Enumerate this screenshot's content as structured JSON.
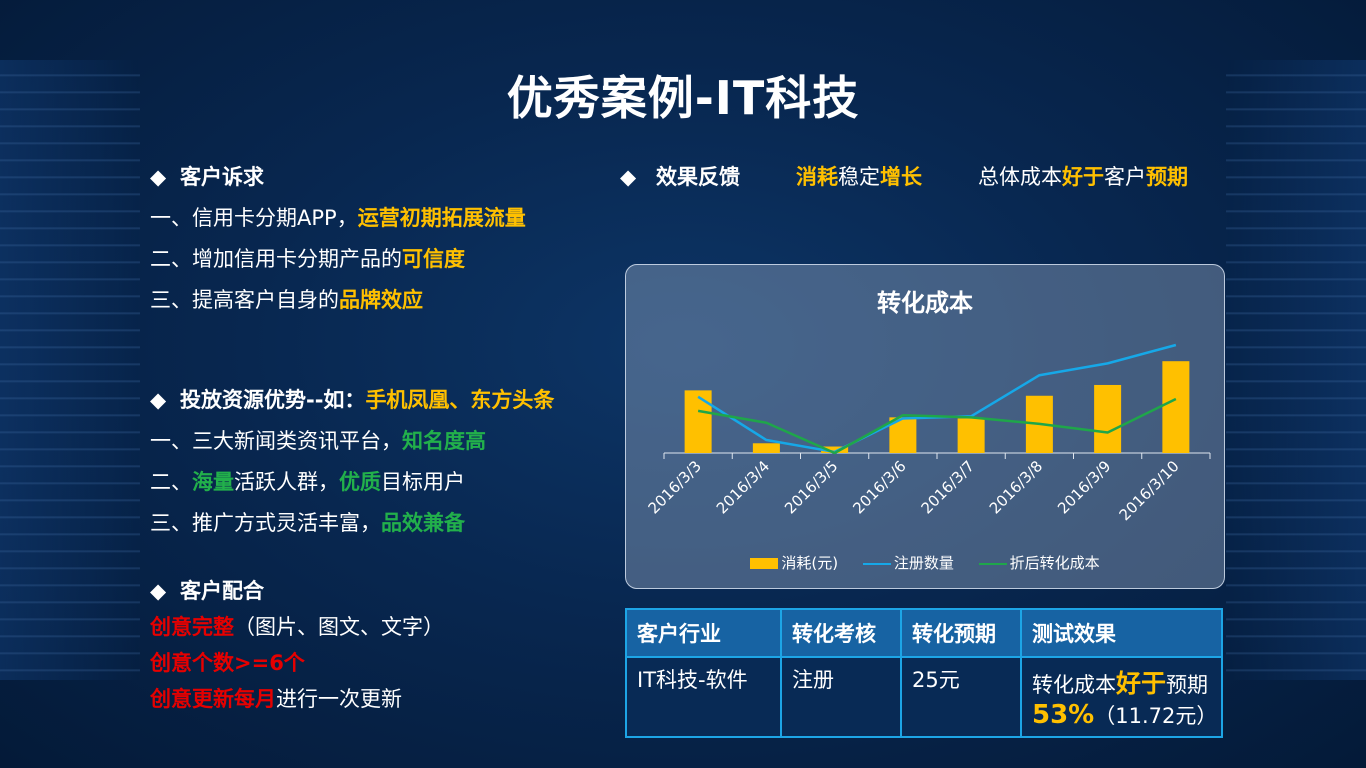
{
  "title": "优秀案例-IT科技",
  "requirements": {
    "heading": "客户诉求",
    "lines": [
      {
        "prefix": "一、信用卡分期APP，",
        "highlight": "运营初期拓展流量",
        "suffix": ""
      },
      {
        "prefix": "二、增加信用卡分期产品的",
        "highlight": "可信度",
        "suffix": ""
      },
      {
        "prefix": "三、提高客户自身的",
        "highlight": "品牌效应",
        "suffix": ""
      }
    ]
  },
  "resources": {
    "heading": "投放资源优势--如：",
    "heading_highlight": "手机凤凰、东方头条",
    "lines": [
      {
        "a": "一、三大新闻类资讯平台，",
        "b": "知名度高",
        "c": "",
        "d": "",
        "e": ""
      },
      {
        "a": "二、",
        "b": "海量",
        "c": "活跃人群，",
        "d": "优质",
        "e": "目标用户"
      },
      {
        "a": "三、推广方式灵活丰富，",
        "b": "品效兼备",
        "c": "",
        "d": "",
        "e": ""
      }
    ]
  },
  "cooperation": {
    "heading": "客户配合",
    "lines": [
      {
        "red": "创意完整",
        "rest": "（图片、图文、文字）"
      },
      {
        "red": "创意个数>=6个",
        "rest": ""
      },
      {
        "red": "创意更新每月",
        "rest": "进行一次更新"
      }
    ]
  },
  "feedback": {
    "heading": "效果反馈",
    "group1": {
      "a": "消耗",
      "b": "稳定",
      "c": "增长"
    },
    "group2": {
      "a": "总体成本",
      "b": "好于",
      "c": "客户",
      "d": "预期"
    }
  },
  "diamond": "◆",
  "chart_data": {
    "type": "bar",
    "title": "转化成本",
    "categories": [
      "2016/3/3",
      "2016/3/4",
      "2016/3/5",
      "2016/3/6",
      "2016/3/7",
      "2016/3/8",
      "2016/3/9",
      "2016/3/10"
    ],
    "series": [
      {
        "name": "消耗(元)",
        "type": "bar",
        "color": "#ffc000",
        "values": [
          58,
          9,
          6,
          33,
          32,
          53,
          63,
          85
        ]
      },
      {
        "name": "注册数量",
        "type": "line",
        "color": "#16a8e8",
        "values": [
          52,
          12,
          1,
          32,
          34,
          72,
          83,
          100
        ]
      },
      {
        "name": "折后转化成本",
        "type": "line",
        "color": "#1fa64a",
        "values": [
          39,
          28,
          0,
          35,
          33,
          27,
          19,
          50
        ]
      }
    ],
    "ylim": [
      0,
      100
    ],
    "grid": false,
    "legend": "bottom"
  },
  "table": {
    "headers": [
      "客户行业",
      "转化考核",
      "转化预期",
      "测试效果"
    ],
    "row": {
      "industry": "IT科技-软件",
      "metric": "注册",
      "expected": "25元",
      "result_prefix": "转化成本",
      "result_highlight": "好于",
      "result_suffix": "预期",
      "result_pct": "53%",
      "result_value": "（11.72元）"
    }
  }
}
